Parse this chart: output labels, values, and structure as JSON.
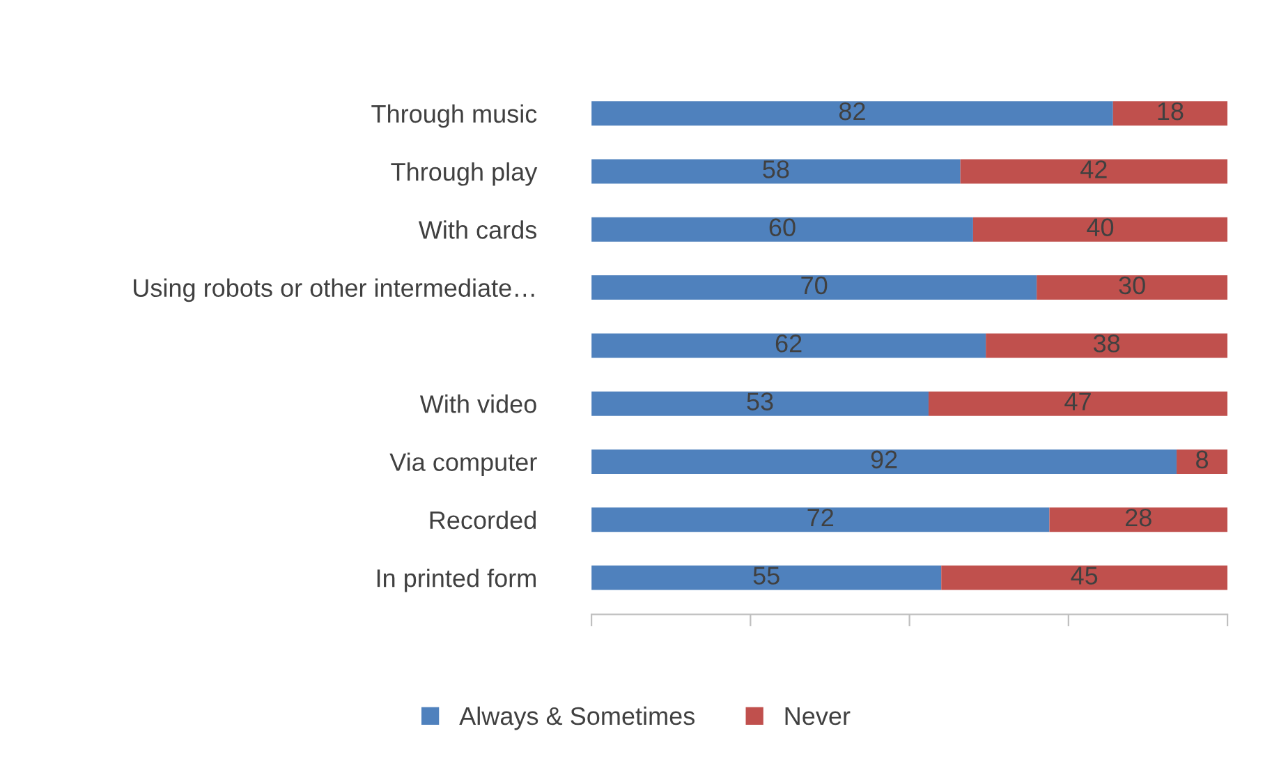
{
  "chart_data": {
    "type": "bar",
    "orientation": "horizontal",
    "stacked": true,
    "data_labels": true,
    "legend": "bottom",
    "tick_labels": "y",
    "grid": false,
    "categories": [
      "Through music",
      "Through play",
      "With cards",
      "Using robots or other intermediate…",
      null,
      "With video",
      "Via computer",
      "Recorded",
      "In printed form"
    ],
    "xlim": [
      0,
      100
    ],
    "xticks": [
      {
        "value": 0,
        "label": null
      },
      {
        "value": 25,
        "label": null
      },
      {
        "value": 50,
        "label": null
      },
      {
        "value": 75,
        "label": null
      },
      {
        "value": 100,
        "label": null
      }
    ],
    "series": [
      {
        "name": "Always & Sometimes",
        "color": "#4f81bd",
        "values": [
          82,
          58,
          60,
          70,
          62,
          53,
          92,
          72,
          55
        ]
      },
      {
        "name": "Never",
        "color": "#c0504d",
        "values": [
          18,
          42,
          40,
          30,
          38,
          47,
          8,
          28,
          45
        ]
      }
    ]
  }
}
